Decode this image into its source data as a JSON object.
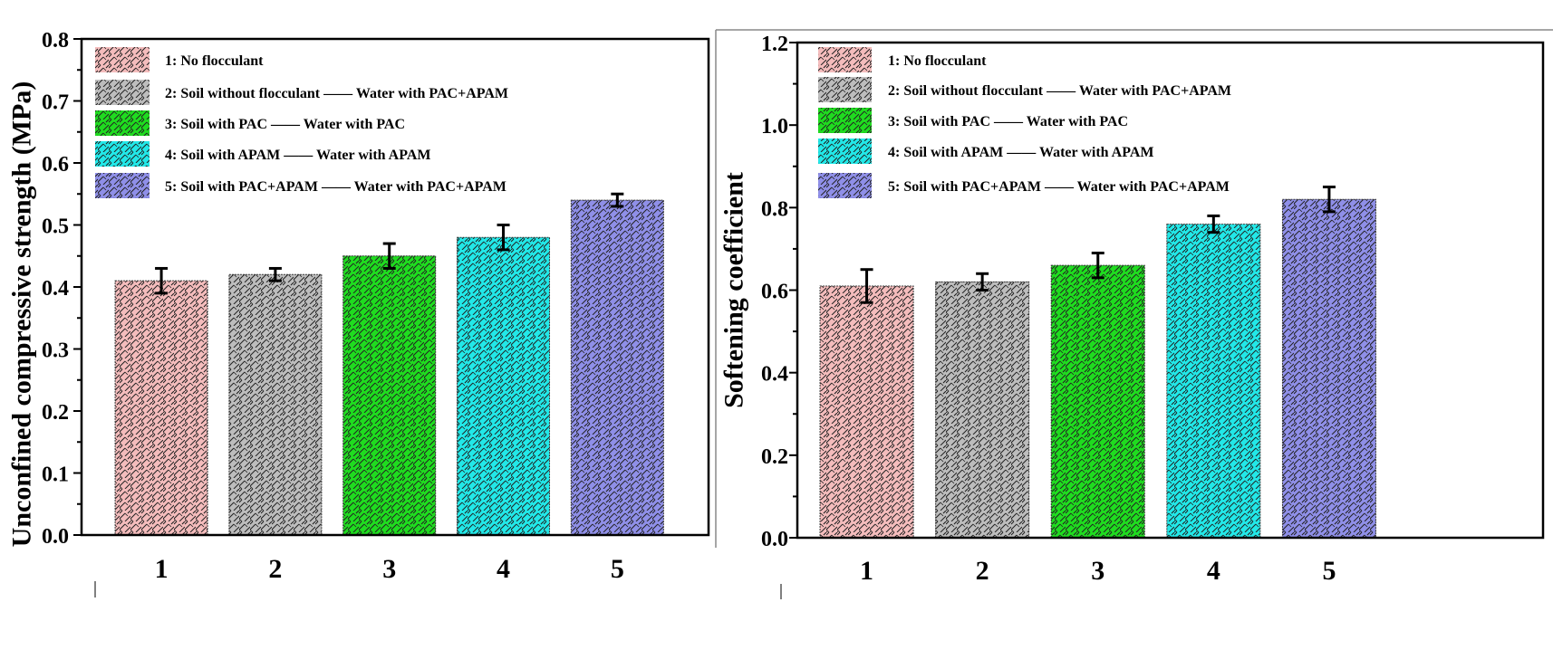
{
  "chart_data": [
    {
      "type": "bar",
      "ylabel": "Unconfined compressive strength (MPa)",
      "xlabel": "",
      "categories": [
        "1",
        "2",
        "3",
        "4",
        "5"
      ],
      "values": [
        0.41,
        0.42,
        0.45,
        0.48,
        0.54
      ],
      "errors": [
        0.02,
        0.01,
        0.02,
        0.02,
        0.01
      ],
      "ylim": [
        0,
        0.8
      ],
      "yticks": [
        "0.0",
        "0.1",
        "0.2",
        "0.3",
        "0.4",
        "0.5",
        "0.6",
        "0.7",
        "0.8"
      ],
      "xlim": [
        0.3,
        5.8
      ],
      "grid": false,
      "legend_position": "top-left",
      "legend": [
        "1: No flocculant",
        "2: Soil without flocculant —— Water with PAC+APAM",
        "3: Soil with PAC —— Water with PAC",
        "4: Soil with APAM —— Water with APAM",
        "5: Soil with PAC+APAM —— Water with PAC+APAM"
      ]
    },
    {
      "type": "bar",
      "ylabel": "Softening coefficient",
      "xlabel": "",
      "categories": [
        "1",
        "2",
        "3",
        "4",
        "5"
      ],
      "values": [
        0.61,
        0.62,
        0.66,
        0.76,
        0.82
      ],
      "errors": [
        0.04,
        0.02,
        0.03,
        0.02,
        0.03
      ],
      "ylim": [
        0,
        1.2
      ],
      "yticks": [
        "0.0",
        "0.2",
        "0.4",
        "0.6",
        "0.8",
        "1.0",
        "1.2"
      ],
      "xlim": [
        0.4,
        6.85
      ],
      "grid": false,
      "legend_position": "top-left",
      "legend": [
        "1: No flocculant",
        "2: Soil without flocculant —— Water with PAC+APAM",
        "3: Soil with PAC —— Water with PAC",
        "4: Soil with APAM —— Water with APAM",
        "5: Soil with PAC+APAM —— Water with PAC+APAM"
      ]
    }
  ],
  "colors": [
    "#f4bcbc",
    "#bdbdbd",
    "#1fdc1f",
    "#22e8e8",
    "#8f8fe8"
  ],
  "pattern": "brick-crosshatch"
}
